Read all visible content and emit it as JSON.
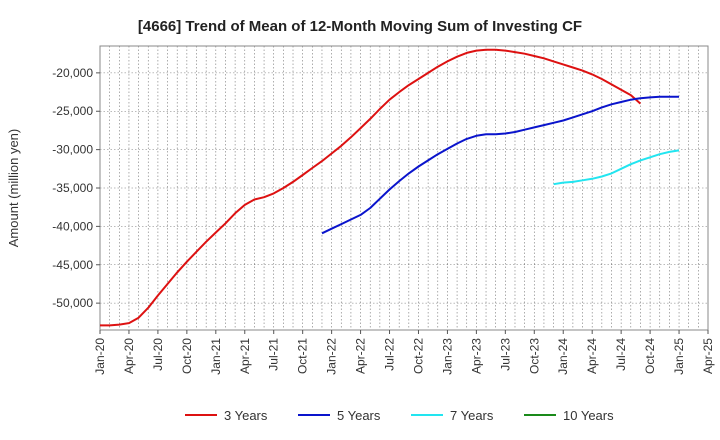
{
  "chart_data": {
    "type": "line",
    "title": "[4666]  Trend of Mean of 12-Month Moving Sum of Investing CF",
    "ylabel": "Amount (million yen)",
    "xlabel": "",
    "x_ticks": [
      "Jan-20",
      "Apr-20",
      "Jul-20",
      "Oct-20",
      "Jan-21",
      "Apr-21",
      "Jul-21",
      "Oct-21",
      "Jan-22",
      "Apr-22",
      "Jul-22",
      "Oct-22",
      "Jan-23",
      "Apr-23",
      "Jul-23",
      "Oct-23",
      "Jan-24",
      "Apr-24",
      "Jul-24",
      "Oct-24",
      "Jan-25",
      "Apr-25"
    ],
    "y_ticks": [
      -50000,
      -45000,
      -40000,
      -35000,
      -30000,
      -25000,
      -20000
    ],
    "y_tick_labels": [
      "-50,000",
      "-45,000",
      "-40,000",
      "-35,000",
      "-30,000",
      "-25,000",
      "-20,000"
    ],
    "ylim": [
      -53500,
      -16500
    ],
    "xlim": [
      "Jan-20",
      "Apr-25"
    ],
    "grid": true,
    "legend_position": "bottom",
    "series": [
      {
        "name": "3 Years",
        "color": "#dd1111",
        "points": [
          [
            "Jan-20",
            -52900
          ],
          [
            "Feb-20",
            -52900
          ],
          [
            "Mar-20",
            -52800
          ],
          [
            "Apr-20",
            -52600
          ],
          [
            "May-20",
            -51900
          ],
          [
            "Jun-20",
            -50600
          ],
          [
            "Jul-20",
            -49000
          ],
          [
            "Aug-20",
            -47500
          ],
          [
            "Sep-20",
            -46000
          ],
          [
            "Oct-20",
            -44600
          ],
          [
            "Nov-20",
            -43300
          ],
          [
            "Dec-20",
            -42000
          ],
          [
            "Jan-21",
            -40800
          ],
          [
            "Feb-21",
            -39600
          ],
          [
            "Mar-21",
            -38300
          ],
          [
            "Apr-21",
            -37200
          ],
          [
            "May-21",
            -36500
          ],
          [
            "Jun-21",
            -36200
          ],
          [
            "Jul-21",
            -35700
          ],
          [
            "Aug-21",
            -35000
          ],
          [
            "Sep-21",
            -34200
          ],
          [
            "Oct-21",
            -33300
          ],
          [
            "Nov-21",
            -32400
          ],
          [
            "Dec-21",
            -31500
          ],
          [
            "Jan-22",
            -30500
          ],
          [
            "Feb-22",
            -29500
          ],
          [
            "Mar-22",
            -28400
          ],
          [
            "Apr-22",
            -27200
          ],
          [
            "May-22",
            -26000
          ],
          [
            "Jun-22",
            -24700
          ],
          [
            "Jul-22",
            -23500
          ],
          [
            "Aug-22",
            -22500
          ],
          [
            "Sep-22",
            -21600
          ],
          [
            "Oct-22",
            -20800
          ],
          [
            "Nov-22",
            -20000
          ],
          [
            "Dec-22",
            -19200
          ],
          [
            "Jan-23",
            -18500
          ],
          [
            "Feb-23",
            -17900
          ],
          [
            "Mar-23",
            -17400
          ],
          [
            "Apr-23",
            -17100
          ],
          [
            "May-23",
            -17000
          ],
          [
            "Jun-23",
            -17000
          ],
          [
            "Jul-23",
            -17100
          ],
          [
            "Aug-23",
            -17300
          ],
          [
            "Sep-23",
            -17500
          ],
          [
            "Oct-23",
            -17800
          ],
          [
            "Nov-23",
            -18100
          ],
          [
            "Dec-23",
            -18500
          ],
          [
            "Jan-24",
            -18900
          ],
          [
            "Feb-24",
            -19300
          ],
          [
            "Mar-24",
            -19700
          ],
          [
            "Apr-24",
            -20200
          ],
          [
            "May-24",
            -20800
          ],
          [
            "Jun-24",
            -21500
          ],
          [
            "Jul-24",
            -22200
          ],
          [
            "Aug-24",
            -22900
          ],
          [
            "Sep-24",
            -24000
          ]
        ]
      },
      {
        "name": "5 Years",
        "color": "#0a14cc",
        "points": [
          [
            "Dec-21",
            -40900
          ],
          [
            "Jan-22",
            -40300
          ],
          [
            "Feb-22",
            -39700
          ],
          [
            "Mar-22",
            -39100
          ],
          [
            "Apr-22",
            -38500
          ],
          [
            "May-22",
            -37600
          ],
          [
            "Jun-22",
            -36400
          ],
          [
            "Jul-22",
            -35200
          ],
          [
            "Aug-22",
            -34100
          ],
          [
            "Sep-22",
            -33100
          ],
          [
            "Oct-22",
            -32200
          ],
          [
            "Nov-22",
            -31400
          ],
          [
            "Dec-22",
            -30600
          ],
          [
            "Jan-23",
            -29900
          ],
          [
            "Feb-23",
            -29200
          ],
          [
            "Mar-23",
            -28600
          ],
          [
            "Apr-23",
            -28200
          ],
          [
            "May-23",
            -28000
          ],
          [
            "Jun-23",
            -28000
          ],
          [
            "Jul-23",
            -27900
          ],
          [
            "Aug-23",
            -27700
          ],
          [
            "Sep-23",
            -27400
          ],
          [
            "Oct-23",
            -27100
          ],
          [
            "Nov-23",
            -26800
          ],
          [
            "Dec-23",
            -26500
          ],
          [
            "Jan-24",
            -26200
          ],
          [
            "Feb-24",
            -25800
          ],
          [
            "Mar-24",
            -25400
          ],
          [
            "Apr-24",
            -25000
          ],
          [
            "May-24",
            -24500
          ],
          [
            "Jun-24",
            -24100
          ],
          [
            "Jul-24",
            -23800
          ],
          [
            "Aug-24",
            -23500
          ],
          [
            "Sep-24",
            -23300
          ],
          [
            "Oct-24",
            -23200
          ],
          [
            "Nov-24",
            -23100
          ],
          [
            "Jan-25",
            -23100
          ]
        ]
      },
      {
        "name": "7 Years",
        "color": "#22e5f0",
        "points": [
          [
            "Dec-23",
            -34500
          ],
          [
            "Jan-24",
            -34300
          ],
          [
            "Feb-24",
            -34200
          ],
          [
            "Mar-24",
            -34000
          ],
          [
            "Apr-24",
            -33800
          ],
          [
            "May-24",
            -33500
          ],
          [
            "Jun-24",
            -33100
          ],
          [
            "Jul-24",
            -32500
          ],
          [
            "Aug-24",
            -31900
          ],
          [
            "Sep-24",
            -31400
          ],
          [
            "Oct-24",
            -31000
          ],
          [
            "Nov-24",
            -30600
          ],
          [
            "Dec-24",
            -30300
          ],
          [
            "Jan-25",
            -30100
          ]
        ]
      },
      {
        "name": "10 Years",
        "color": "#1a8a1a",
        "points": []
      }
    ]
  }
}
